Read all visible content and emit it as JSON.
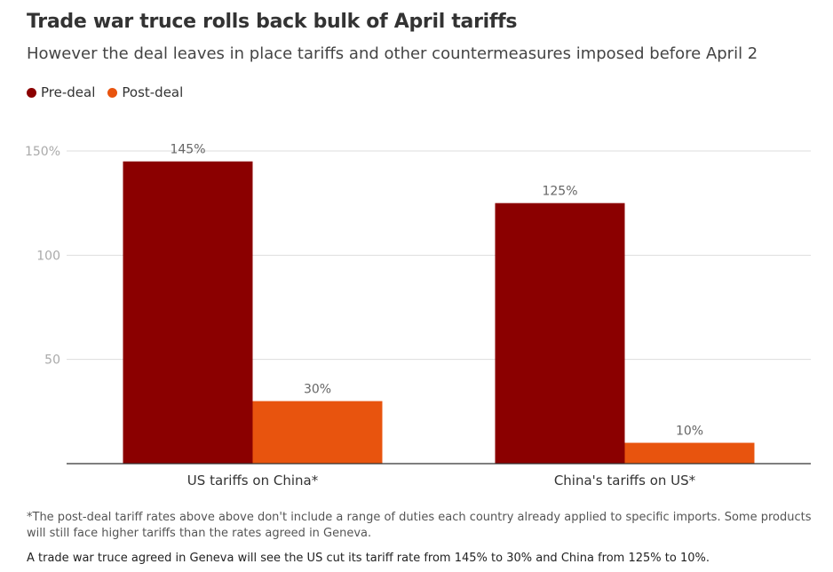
{
  "chart_data": {
    "type": "bar",
    "title": "Trade war truce rolls back bulk of April tariffs",
    "subtitle": "However the deal leaves in place tariffs and other countermeasures imposed before April 2",
    "categories": [
      "US tariffs on China*",
      "China's tariffs on US*"
    ],
    "series": [
      {
        "name": "Pre-deal",
        "color": "#8b0000",
        "values": [
          145,
          125
        ],
        "labels": [
          "145%",
          "125%"
        ]
      },
      {
        "name": "Post-deal",
        "color": "#e8540e",
        "values": [
          30,
          10
        ],
        "labels": [
          "30%",
          "10%"
        ]
      }
    ],
    "ylim": [
      0,
      150
    ],
    "yticks": [
      {
        "value": 50,
        "label": "50"
      },
      {
        "value": 100,
        "label": "100"
      },
      {
        "value": 150,
        "label": "150%"
      }
    ],
    "grid": true,
    "legend_position": "top-left"
  },
  "footnote": "*The post-deal tariff rates above above don't include a range of duties each country already applied to specific imports. Some products will still face higher tariffs than the rates agreed in Geneva.",
  "caption": "A trade war truce agreed in Geneva will see the US cut its tariff rate from 145% to 30% and China from 125% to 10%."
}
